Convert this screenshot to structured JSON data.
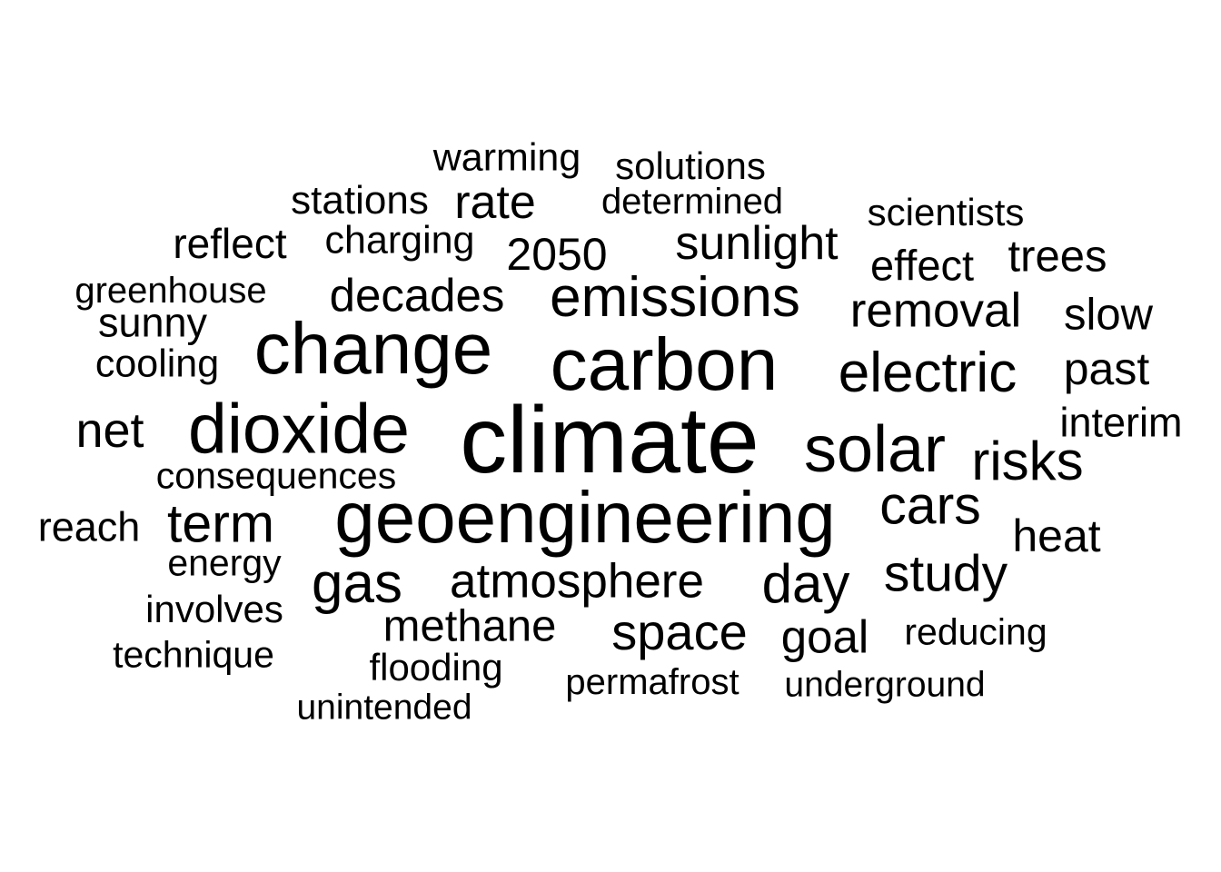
{
  "word_cloud": {
    "text_color": "#000000",
    "background_color": "#ffffff",
    "words": [
      "climate",
      "geoengineering",
      "carbon",
      "change",
      "dioxide",
      "solar",
      "emissions",
      "electric",
      "risks",
      "cars",
      "term",
      "gas",
      "atmosphere",
      "day",
      "study",
      "space",
      "removal",
      "sunlight",
      "decades",
      "methane",
      "goal",
      "net",
      "2050",
      "rate",
      "trees",
      "past",
      "slow",
      "heat",
      "effect",
      "interim",
      "reach",
      "consequences",
      "reflect",
      "sunny",
      "charging",
      "stations",
      "warming",
      "solutions",
      "determined",
      "scientists",
      "greenhouse",
      "cooling",
      "energy",
      "involves",
      "technique",
      "flooding",
      "permafrost",
      "underground",
      "unintended",
      "reducing"
    ]
  }
}
